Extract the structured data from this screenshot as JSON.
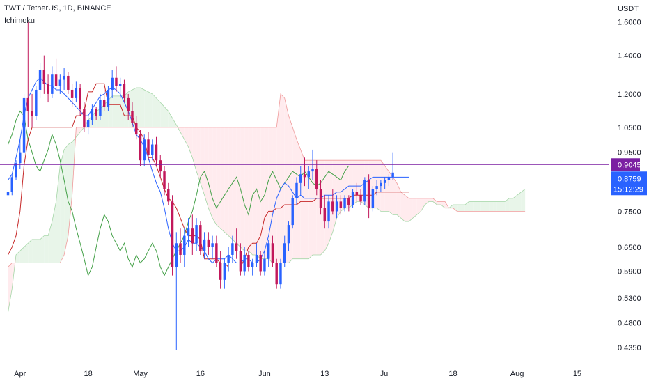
{
  "header": {
    "symbol_line": "TWT / TetherUS, 1D, BINANCE",
    "indicator": "Ichimoku"
  },
  "axis": {
    "currency": "USDT"
  },
  "chart_data": {
    "type": "candlestick",
    "symbol": "TWT / TetherUS",
    "interval": "1D",
    "exchange": "BINANCE",
    "indicator": "Ichimoku",
    "y_scale": "log",
    "ylim": [
      0.41,
      1.7
    ],
    "y_ticks": [
      1.6,
      1.4,
      1.2,
      1.05,
      0.95,
      0.75,
      0.65,
      0.59,
      0.53,
      0.48,
      0.435
    ],
    "y_tick_labels": [
      "1.6000",
      "1.4000",
      "1.2000",
      "1.0500",
      "0.9500",
      "0.7500",
      "0.6500",
      "0.5900",
      "0.5300",
      "0.4800",
      "0.4350"
    ],
    "x_tick_labels": [
      "Apr",
      "18",
      "May",
      "16",
      "Jun",
      "13",
      "Jul",
      "18",
      "Aug",
      "15"
    ],
    "x_tick_days": [
      3,
      20,
      33,
      48,
      64,
      79,
      94,
      111,
      127,
      142
    ],
    "x_range_days": [
      -2,
      150
    ],
    "last_day": 116,
    "price_lines": {
      "current_price": "0.9045",
      "current_price_value": 0.9045,
      "last_close": "0.8759",
      "countdown": "15:12:29",
      "current_color": "#7b1fa2",
      "close_color": "#2962ff"
    },
    "colors": {
      "up": "#2962ff",
      "down": "#c2185b",
      "tenkan": "#2962ff",
      "kijun": "#c62828",
      "chikou": "#43a047",
      "cloud_bull": "#e8f5e9",
      "cloud_bear": "#ffebee"
    },
    "candles": [
      [
        0.8,
        0.84,
        0.79,
        0.81
      ],
      [
        0.81,
        0.87,
        0.8,
        0.86
      ],
      [
        0.86,
        0.92,
        0.85,
        0.91
      ],
      [
        0.91,
        1.0,
        0.89,
        0.95
      ],
      [
        0.95,
        1.2,
        0.93,
        1.18
      ],
      [
        1.18,
        1.6,
        1.05,
        1.12
      ],
      [
        1.12,
        1.2,
        1.05,
        1.1
      ],
      [
        1.1,
        1.24,
        1.08,
        1.22
      ],
      [
        1.22,
        1.36,
        1.18,
        1.32
      ],
      [
        1.32,
        1.4,
        1.2,
        1.25
      ],
      [
        1.25,
        1.3,
        1.16,
        1.2
      ],
      [
        1.2,
        1.34,
        1.18,
        1.3
      ],
      [
        1.3,
        1.38,
        1.22,
        1.24
      ],
      [
        1.24,
        1.3,
        1.2,
        1.27
      ],
      [
        1.27,
        1.33,
        1.22,
        1.29
      ],
      [
        1.29,
        1.31,
        1.2,
        1.22
      ],
      [
        1.22,
        1.25,
        1.14,
        1.18
      ],
      [
        1.18,
        1.26,
        1.16,
        1.23
      ],
      [
        1.23,
        1.25,
        1.1,
        1.13
      ],
      [
        1.13,
        1.16,
        1.03,
        1.05
      ],
      [
        1.05,
        1.1,
        1.02,
        1.08
      ],
      [
        1.08,
        1.15,
        1.06,
        1.13
      ],
      [
        1.13,
        1.14,
        1.08,
        1.1
      ],
      [
        1.1,
        1.2,
        1.08,
        1.17
      ],
      [
        1.17,
        1.22,
        1.12,
        1.14
      ],
      [
        1.14,
        1.24,
        1.12,
        1.22
      ],
      [
        1.22,
        1.32,
        1.18,
        1.28
      ],
      [
        1.28,
        1.34,
        1.21,
        1.24
      ],
      [
        1.24,
        1.28,
        1.18,
        1.25
      ],
      [
        1.25,
        1.27,
        1.16,
        1.18
      ],
      [
        1.18,
        1.2,
        1.08,
        1.12
      ],
      [
        1.12,
        1.16,
        1.05,
        1.07
      ],
      [
        1.07,
        1.1,
        1.0,
        1.02
      ],
      [
        1.02,
        1.04,
        0.9,
        0.92
      ],
      [
        0.92,
        1.02,
        0.9,
        1.0
      ],
      [
        1.0,
        1.03,
        0.92,
        0.94
      ],
      [
        0.94,
        1.0,
        0.92,
        0.98
      ],
      [
        0.98,
        1.01,
        0.9,
        0.92
      ],
      [
        0.92,
        0.94,
        0.86,
        0.88
      ],
      [
        0.88,
        0.9,
        0.8,
        0.82
      ],
      [
        0.82,
        0.84,
        0.77,
        0.78
      ],
      [
        0.78,
        0.8,
        0.58,
        0.6
      ],
      [
        0.6,
        0.69,
        0.43,
        0.66
      ],
      [
        0.66,
        0.7,
        0.61,
        0.63
      ],
      [
        0.63,
        0.7,
        0.6,
        0.68
      ],
      [
        0.68,
        0.73,
        0.65,
        0.7
      ],
      [
        0.7,
        0.74,
        0.63,
        0.66
      ],
      [
        0.66,
        0.73,
        0.64,
        0.71
      ],
      [
        0.71,
        0.72,
        0.63,
        0.64
      ],
      [
        0.64,
        0.69,
        0.62,
        0.67
      ],
      [
        0.67,
        0.69,
        0.63,
        0.65
      ],
      [
        0.65,
        0.68,
        0.62,
        0.66
      ],
      [
        0.66,
        0.68,
        0.6,
        0.61
      ],
      [
        0.61,
        0.64,
        0.55,
        0.57
      ],
      [
        0.57,
        0.62,
        0.55,
        0.61
      ],
      [
        0.61,
        0.65,
        0.59,
        0.63
      ],
      [
        0.63,
        0.68,
        0.61,
        0.66
      ],
      [
        0.66,
        0.7,
        0.62,
        0.64
      ],
      [
        0.64,
        0.66,
        0.58,
        0.59
      ],
      [
        0.59,
        0.65,
        0.58,
        0.63
      ],
      [
        0.63,
        0.64,
        0.59,
        0.6
      ],
      [
        0.6,
        0.62,
        0.58,
        0.61
      ],
      [
        0.61,
        0.66,
        0.6,
        0.63
      ],
      [
        0.63,
        0.64,
        0.58,
        0.59
      ],
      [
        0.59,
        0.64,
        0.58,
        0.62
      ],
      [
        0.62,
        0.67,
        0.6,
        0.66
      ],
      [
        0.66,
        0.68,
        0.6,
        0.61
      ],
      [
        0.61,
        0.62,
        0.55,
        0.56
      ],
      [
        0.56,
        0.62,
        0.55,
        0.61
      ],
      [
        0.61,
        0.68,
        0.6,
        0.66
      ],
      [
        0.66,
        0.72,
        0.64,
        0.71
      ],
      [
        0.71,
        0.8,
        0.7,
        0.79
      ],
      [
        0.79,
        0.86,
        0.77,
        0.84
      ],
      [
        0.84,
        0.9,
        0.8,
        0.87
      ],
      [
        0.87,
        0.93,
        0.83,
        0.86
      ],
      [
        0.86,
        0.9,
        0.82,
        0.88
      ],
      [
        0.88,
        0.96,
        0.85,
        0.89
      ],
      [
        0.89,
        0.92,
        0.8,
        0.82
      ],
      [
        0.82,
        0.85,
        0.74,
        0.76
      ],
      [
        0.76,
        0.8,
        0.7,
        0.72
      ],
      [
        0.72,
        0.8,
        0.7,
        0.78
      ],
      [
        0.78,
        0.82,
        0.74,
        0.75
      ],
      [
        0.75,
        0.8,
        0.73,
        0.78
      ],
      [
        0.78,
        0.8,
        0.74,
        0.76
      ],
      [
        0.76,
        0.8,
        0.75,
        0.79
      ],
      [
        0.79,
        0.8,
        0.75,
        0.77
      ],
      [
        0.77,
        0.82,
        0.76,
        0.81
      ],
      [
        0.81,
        0.84,
        0.78,
        0.8
      ],
      [
        0.8,
        0.82,
        0.77,
        0.78
      ],
      [
        0.78,
        0.86,
        0.77,
        0.85
      ],
      [
        0.85,
        0.87,
        0.73,
        0.76
      ],
      [
        0.76,
        0.83,
        0.75,
        0.82
      ],
      [
        0.82,
        0.85,
        0.8,
        0.83
      ],
      [
        0.83,
        0.85,
        0.81,
        0.84
      ],
      [
        0.84,
        0.86,
        0.82,
        0.85
      ],
      [
        0.85,
        0.87,
        0.83,
        0.86
      ],
      [
        0.86,
        0.95,
        0.85,
        0.8759
      ]
    ],
    "tenkan": [
      0.85,
      0.87,
      0.93,
      1.0,
      1.1,
      1.18,
      1.22,
      1.26,
      1.28,
      1.26,
      1.24,
      1.24,
      1.22,
      1.22,
      1.2,
      1.18,
      1.16,
      1.14,
      1.12,
      1.1,
      1.1,
      1.13,
      1.16,
      1.19,
      1.2,
      1.22,
      1.23,
      1.22,
      1.2,
      1.16,
      1.12,
      1.07,
      1.02,
      1.0,
      0.97,
      0.93,
      0.88,
      0.84,
      0.81,
      0.76,
      0.7,
      0.66,
      0.64,
      0.64,
      0.65,
      0.67,
      0.66,
      0.66,
      0.65,
      0.64,
      0.62,
      0.61,
      0.62,
      0.62,
      0.62,
      0.63,
      0.62,
      0.61,
      0.61,
      0.62,
      0.62,
      0.61,
      0.61,
      0.62,
      0.64,
      0.68,
      0.74,
      0.79,
      0.82,
      0.84,
      0.83,
      0.81,
      0.79,
      0.8,
      0.79,
      0.79,
      0.79,
      0.79,
      0.79,
      0.8,
      0.8,
      0.8,
      0.81,
      0.81,
      0.82,
      0.83,
      0.83,
      0.83,
      0.83,
      0.84,
      0.85,
      0.86,
      0.86,
      0.86,
      0.86,
      0.86,
      0.86,
      0.86,
      0.86,
      0.86,
      0.86
    ],
    "kijun": [
      0.63,
      0.65,
      0.68,
      0.75,
      0.9,
      1.0,
      1.05,
      1.05,
      1.05,
      1.05,
      1.05,
      1.05,
      1.05,
      1.05,
      1.05,
      1.05,
      1.05,
      1.1,
      1.1,
      1.12,
      1.21,
      1.21,
      1.25,
      1.25,
      1.25,
      1.15,
      1.15,
      1.15,
      1.15,
      1.1,
      1.1,
      1.1,
      1.05,
      1.03,
      1.0,
      0.93,
      0.93,
      0.9,
      0.86,
      0.82,
      0.79,
      0.78,
      0.76,
      0.73,
      0.7,
      0.68,
      0.68,
      0.68,
      0.67,
      0.62,
      0.62,
      0.62,
      0.62,
      0.61,
      0.61,
      0.6,
      0.6,
      0.6,
      0.6,
      0.62,
      0.65,
      0.66,
      0.66,
      0.68,
      0.73,
      0.75,
      0.75,
      0.76,
      0.76,
      0.77,
      0.77,
      0.77,
      0.77,
      0.78,
      0.78,
      0.78,
      0.78,
      0.79,
      0.79,
      0.79,
      0.79,
      0.79,
      0.79,
      0.79,
      0.79,
      0.79,
      0.8,
      0.8,
      0.8,
      0.8,
      0.8,
      0.8,
      0.81,
      0.81,
      0.81,
      0.81,
      0.81,
      0.81,
      0.81,
      0.81,
      0.81
    ],
    "chikou": [
      0.98,
      1.02,
      1.08,
      1.12,
      1.1,
      1.0,
      0.95,
      0.9,
      0.88,
      0.92,
      0.96,
      1.02,
      0.98,
      0.92,
      0.85,
      0.78,
      0.75,
      0.7,
      0.66,
      0.62,
      0.58,
      0.6,
      0.65,
      0.7,
      0.74,
      0.72,
      0.68,
      0.66,
      0.64,
      0.66,
      0.62,
      0.6,
      0.63,
      0.61,
      0.62,
      0.64,
      0.66,
      0.64,
      0.6,
      0.58,
      0.6,
      0.62,
      0.64,
      0.66,
      0.68,
      0.72,
      0.75,
      0.8,
      0.86,
      0.88,
      0.84,
      0.79,
      0.76,
      0.78,
      0.8,
      0.82,
      0.84,
      0.86,
      0.82,
      0.77,
      0.74,
      0.8,
      0.82,
      0.78,
      0.8,
      0.85,
      0.88,
      0.85,
      0.82,
      0.84,
      0.86,
      0.88,
      0.87,
      0.86,
      0.88,
      0.86,
      0.84,
      0.83,
      0.84,
      0.86,
      0.88,
      0.87,
      0.86,
      0.85,
      0.88,
      0.9
    ],
    "senkou_a": [
      0.5,
      0.55,
      0.63,
      0.64,
      0.65,
      0.66,
      0.67,
      0.67,
      0.67,
      0.68,
      0.68,
      0.72,
      0.78,
      0.9,
      0.96,
      0.98,
      0.99,
      1.01,
      1.03,
      1.05,
      1.08,
      1.1,
      1.12,
      1.13,
      1.15,
      1.17,
      1.19,
      1.19,
      1.19,
      1.19,
      1.21,
      1.22,
      1.23,
      1.23,
      1.22,
      1.21,
      1.2,
      1.18,
      1.16,
      1.14,
      1.12,
      1.09,
      1.06,
      1.03,
      1.0,
      0.97,
      0.93,
      0.88,
      0.84,
      0.8,
      0.76,
      0.73,
      0.71,
      0.7,
      0.69,
      0.68,
      0.67,
      0.66,
      0.65,
      0.64,
      0.64,
      0.63,
      0.63,
      0.62,
      0.62,
      0.62,
      0.61,
      0.61,
      0.61,
      0.61,
      0.61,
      0.62,
      0.62,
      0.62,
      0.62,
      0.62,
      0.63,
      0.63,
      0.63,
      0.64,
      0.66,
      0.69,
      0.73,
      0.75,
      0.76,
      0.76,
      0.77,
      0.78,
      0.78,
      0.77,
      0.76,
      0.76,
      0.76,
      0.75,
      0.75,
      0.75,
      0.74,
      0.74,
      0.73,
      0.72,
      0.72,
      0.73,
      0.74,
      0.75,
      0.77,
      0.78,
      0.78,
      0.77,
      0.77,
      0.76,
      0.76,
      0.77,
      0.77,
      0.77,
      0.77,
      0.78,
      0.78,
      0.78,
      0.78,
      0.78,
      0.78,
      0.78,
      0.78,
      0.78,
      0.78,
      0.79,
      0.79,
      0.8,
      0.81,
      0.82
    ],
    "senkou_b": [
      0.6,
      0.61,
      0.61,
      0.61,
      0.61,
      0.61,
      0.61,
      0.61,
      0.61,
      0.61,
      0.61,
      0.61,
      0.61,
      0.61,
      0.63,
      0.68,
      0.8,
      1.05,
      1.05,
      1.05,
      1.05,
      1.05,
      1.05,
      1.05,
      1.05,
      1.05,
      1.05,
      1.05,
      1.05,
      1.05,
      1.05,
      1.05,
      1.05,
      1.05,
      1.05,
      1.05,
      1.05,
      1.05,
      1.05,
      1.05,
      1.05,
      1.05,
      1.05,
      1.05,
      1.05,
      1.05,
      1.05,
      1.05,
      1.05,
      1.05,
      1.05,
      1.05,
      1.05,
      1.05,
      1.05,
      1.05,
      1.05,
      1.05,
      1.05,
      1.05,
      1.05,
      1.05,
      1.05,
      1.05,
      1.05,
      1.05,
      1.05,
      1.05,
      1.2,
      1.18,
      1.1,
      1.05,
      1.0,
      0.96,
      0.92,
      0.92,
      0.92,
      0.92,
      0.92,
      0.92,
      0.92,
      0.92,
      0.92,
      0.92,
      0.92,
      0.92,
      0.92,
      0.92,
      0.92,
      0.92,
      0.92,
      0.92,
      0.92,
      0.92,
      0.9,
      0.88,
      0.86,
      0.84,
      0.81,
      0.8,
      0.79,
      0.79,
      0.79,
      0.79,
      0.79,
      0.79,
      0.79,
      0.78,
      0.78,
      0.78,
      0.76,
      0.76,
      0.75,
      0.75,
      0.75,
      0.75,
      0.75,
      0.75,
      0.75,
      0.75,
      0.75,
      0.75,
      0.75,
      0.75,
      0.75,
      0.75,
      0.75,
      0.75,
      0.75,
      0.75
    ]
  }
}
